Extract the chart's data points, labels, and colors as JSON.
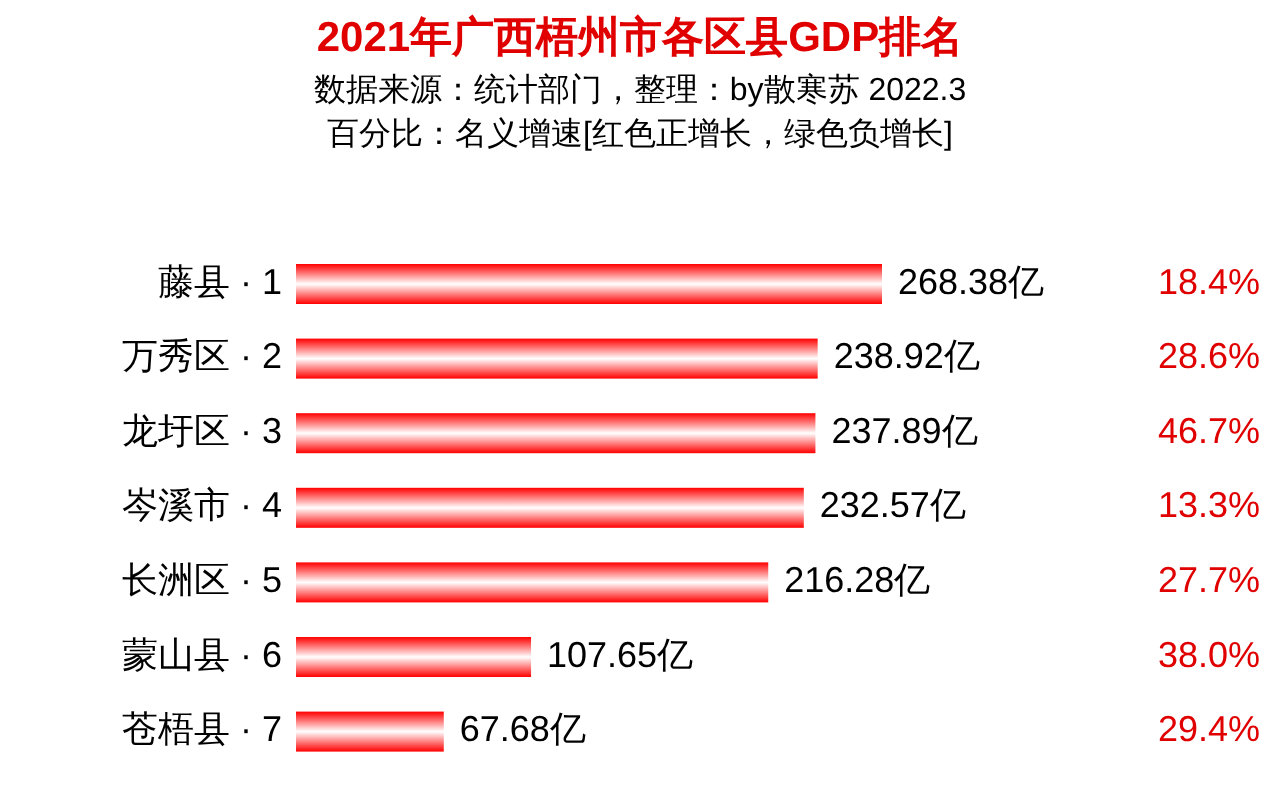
{
  "chart_data": {
    "type": "bar",
    "orientation": "horizontal",
    "title": "2021年广西梧州市各区县GDP排名",
    "subtitle": "数据来源：统计部门，整理：by散寒苏  2022.3",
    "categories": [
      "藤县 · 1",
      "万秀区 · 2",
      "龙圩区 · 3",
      "岑溪市 · 4",
      "长洲区 · 5",
      "蒙山县 · 6",
      "苍梧县 · 7"
    ],
    "values": [
      268.38,
      238.92,
      237.89,
      232.57,
      216.28,
      107.65,
      67.68
    ],
    "value_labels": [
      "268.38亿",
      "238.92亿",
      "237.89亿",
      "232.57亿",
      "216.28亿",
      "107.65亿",
      "67.68亿"
    ],
    "color": "#ff0000",
    "annotations": [
      "百分比：名义增速[红色正增长，绿色负增长]",
      "18.4%",
      "28.6%",
      "46.7%",
      "13.3%",
      "27.7%",
      "38.0%",
      "29.4%"
    ]
  }
}
